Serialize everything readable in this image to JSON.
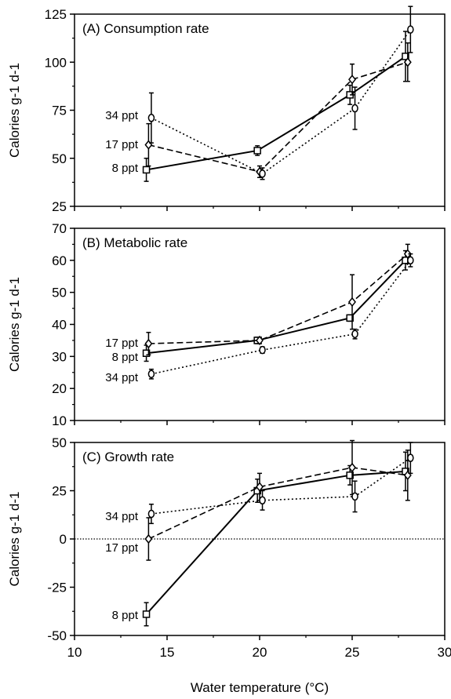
{
  "xlabel": "Water temperature (°C)",
  "chart_data": [
    {
      "type": "line",
      "title": "(A)  Consumption rate",
      "xlabel": "Water temperature (°C)",
      "ylabel": "Calories  g-1 d-1",
      "xlim": [
        10,
        30
      ],
      "ylim": [
        25,
        125
      ],
      "xticks": [
        10,
        15,
        20,
        25,
        30
      ],
      "yticks": [
        25,
        50,
        75,
        100,
        125
      ],
      "grid": false,
      "series": [
        {
          "name": "8 ppt",
          "marker": "square",
          "dash": "solid",
          "x": [
            14,
            20,
            25,
            28
          ],
          "y": [
            44,
            54,
            83,
            103
          ],
          "err": [
            6,
            2.5,
            5,
            13
          ]
        },
        {
          "name": "17 ppt",
          "marker": "diamond",
          "dash": "dashed",
          "x": [
            14,
            20,
            25,
            28
          ],
          "y": [
            57,
            43,
            91,
            100
          ],
          "err": [
            11,
            3,
            8,
            10
          ]
        },
        {
          "name": "34 ppt",
          "marker": "circle",
          "dash": "dotted",
          "x": [
            14,
            20,
            25,
            28
          ],
          "y": [
            71,
            42,
            76,
            117
          ],
          "err": [
            13,
            3,
            11,
            12
          ]
        }
      ]
    },
    {
      "type": "line",
      "title": "(B)  Metabolic rate",
      "xlabel": "Water temperature (°C)",
      "ylabel": "Calories  g-1 d-1",
      "xlim": [
        10,
        30
      ],
      "ylim": [
        10,
        70
      ],
      "xticks": [
        10,
        15,
        20,
        25,
        30
      ],
      "yticks": [
        10,
        20,
        30,
        40,
        50,
        60,
        70
      ],
      "grid": false,
      "series": [
        {
          "name": "8 ppt",
          "marker": "square",
          "dash": "solid",
          "x": [
            14,
            20,
            25,
            28
          ],
          "y": [
            31,
            35,
            42,
            60
          ],
          "err": [
            2.5,
            1,
            1,
            3
          ]
        },
        {
          "name": "17 ppt",
          "marker": "diamond",
          "dash": "dashed",
          "x": [
            14,
            20,
            25,
            28
          ],
          "y": [
            34,
            35,
            47,
            62
          ],
          "err": [
            3.5,
            1,
            8.5,
            3
          ]
        },
        {
          "name": "34 ppt",
          "marker": "circle",
          "dash": "dotted",
          "x": [
            14,
            20,
            25,
            28
          ],
          "y": [
            24.5,
            32,
            37,
            60
          ],
          "err": [
            1.5,
            1,
            1.5,
            2
          ]
        }
      ]
    },
    {
      "type": "line",
      "title": "(C)  Growth rate",
      "xlabel": "Water temperature (°C)",
      "ylabel": "Calories  g-1 d-1",
      "xlim": [
        10,
        30
      ],
      "ylim": [
        -50,
        50
      ],
      "xticks": [
        10,
        15,
        20,
        25,
        30
      ],
      "yticks": [
        -50,
        -25,
        0,
        25,
        50
      ],
      "zero_line": "dotted",
      "grid": false,
      "series": [
        {
          "name": "8 ppt",
          "marker": "square",
          "dash": "solid",
          "x": [
            14,
            20,
            25,
            28
          ],
          "y": [
            -39,
            25,
            33,
            35
          ],
          "err": [
            6,
            6,
            5,
            10
          ]
        },
        {
          "name": "17 ppt",
          "marker": "diamond",
          "dash": "dashed",
          "x": [
            14,
            20,
            25,
            28
          ],
          "y": [
            0,
            27,
            37,
            33
          ],
          "err": [
            11,
            7,
            14,
            13
          ]
        },
        {
          "name": "34 ppt",
          "marker": "circle",
          "dash": "dotted",
          "x": [
            14,
            20,
            25,
            28
          ],
          "y": [
            13,
            20,
            22,
            42
          ],
          "err": [
            5,
            5,
            8,
            8
          ]
        }
      ]
    }
  ]
}
